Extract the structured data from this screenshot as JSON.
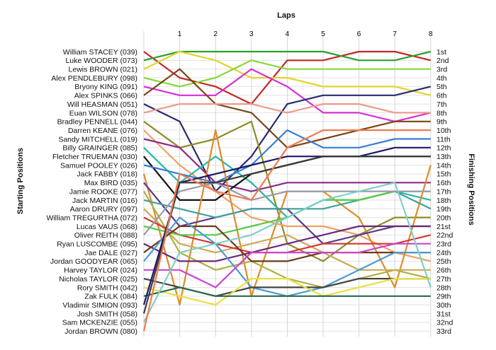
{
  "chart_data": {
    "type": "line",
    "title": "Laps",
    "ylabel_left": "Starting Positions",
    "ylabel_right": "Finishing Positions",
    "laps": [
      "1",
      "2",
      "3",
      "4",
      "5",
      "6",
      "7",
      "8"
    ],
    "finishing_positions": [
      "1st",
      "2nd",
      "3rd",
      "4th",
      "5th",
      "6th",
      "7th",
      "8th",
      "9th",
      "10th",
      "11th",
      "12th",
      "13th",
      "14th",
      "15th",
      "16th",
      "17th",
      "18th",
      "19th",
      "20th",
      "21st",
      "22nd",
      "23rd",
      "24th",
      "25th",
      "26th",
      "27th",
      "28th",
      "29th",
      "30th",
      "31st",
      "32nd",
      "33rd"
    ],
    "ylim": [
      1,
      33
    ],
    "grid": true,
    "series": [
      {
        "name": "William STACEY (039)",
        "color": "#c0282a",
        "values": [
          1,
          4,
          5,
          7,
          2,
          2,
          1,
          1,
          2
        ]
      },
      {
        "name": "Luke WOODER (073)",
        "color": "#2f9e2f",
        "values": [
          2,
          1,
          1,
          1,
          1,
          1,
          2,
          2,
          1
        ]
      },
      {
        "name": "Lewis BROWN (021)",
        "color": "#e3d42a",
        "values": [
          3,
          1,
          2,
          4,
          4,
          5,
          5,
          5,
          6
        ]
      },
      {
        "name": "Alex PENDLEBURY (098)",
        "color": "#88d838",
        "values": [
          4,
          5,
          4,
          2,
          3,
          3,
          3,
          3,
          3
        ]
      },
      {
        "name": "Bryony KING (091)",
        "color": "#d62fd6",
        "values": [
          5,
          6,
          6,
          3,
          5,
          8,
          8,
          9,
          8
        ]
      },
      {
        "name": "Alex SPINKS (066)",
        "color": "#7a4516",
        "values": [
          6,
          3,
          7,
          8,
          12,
          11,
          10,
          9,
          9
        ]
      },
      {
        "name": "Will HEASMAN (051)",
        "color": "#2b2b6e",
        "values": [
          7,
          9,
          17,
          13,
          7,
          6,
          6,
          6,
          5
        ]
      },
      {
        "name": "Euan WILSON (078)",
        "color": "#ee9a88",
        "values": [
          8,
          7,
          7,
          7,
          8,
          7,
          7,
          8,
          8
        ]
      },
      {
        "name": "Bradley PENNELL (044)",
        "color": "#8d8d2a",
        "values": [
          9,
          12,
          11,
          9,
          23,
          25,
          22,
          20,
          20
        ]
      },
      {
        "name": "Darren KEANE (076)",
        "color": "#f0a060",
        "values": [
          10,
          14,
          17,
          20,
          21,
          21,
          22,
          24,
          25
        ]
      },
      {
        "name": "Sandy MITCHELL (019)",
        "color": "#8c2a8a",
        "values": [
          11,
          12,
          16,
          17,
          16,
          16,
          16,
          16,
          16
        ]
      },
      {
        "name": "Billy GRAINGER (085)",
        "color": "#22b8a8",
        "values": [
          12,
          16,
          13,
          16,
          20,
          18,
          18,
          17,
          18
        ]
      },
      {
        "name": "Fletcher TRUEMAN (030)",
        "color": "#111111",
        "values": [
          13,
          18,
          18,
          15,
          14,
          13,
          13,
          13,
          13
        ]
      },
      {
        "name": "Samuel POOLEY (026)",
        "color": "#3a7fd0",
        "values": [
          14,
          15,
          16,
          14,
          10,
          12,
          12,
          11,
          11
        ]
      },
      {
        "name": "Jack FABBY (018)",
        "color": "#e08a2a",
        "values": [
          15,
          30,
          10,
          29,
          17,
          17,
          20,
          28,
          14
        ]
      },
      {
        "name": "Max BIRD (035)",
        "color": "#5c3a8a",
        "values": [
          16,
          21,
          20,
          19,
          19,
          23,
          22,
          21,
          21
        ]
      },
      {
        "name": "Jamie ROOKE (077)",
        "color": "#b0b040",
        "values": [
          17,
          24,
          26,
          25,
          27,
          28,
          27,
          26,
          27
        ]
      },
      {
        "name": "Jack MARTIN (016)",
        "color": "#40a0a0",
        "values": [
          18,
          19,
          20,
          19,
          19,
          19,
          18,
          17,
          19
        ]
      },
      {
        "name": "Aaron DRURY (097)",
        "color": "#ccaa55",
        "values": [
          19,
          23,
          24,
          23,
          22,
          24,
          26,
          26,
          26
        ]
      },
      {
        "name": "William TREGURTHA (072)",
        "color": "#d03a3a",
        "values": [
          20,
          22,
          23,
          24,
          24,
          23,
          23,
          23,
          22
        ]
      },
      {
        "name": "Lucas VAUS (068)",
        "color": "#55cc44",
        "values": [
          21,
          22,
          22,
          21,
          20,
          18,
          18,
          17,
          17
        ]
      },
      {
        "name": "Oliver REITH (088)",
        "color": "#9a9aa8",
        "values": [
          22,
          17,
          16,
          18,
          17,
          17,
          17,
          17,
          17
        ]
      },
      {
        "name": "Ryan LUSCOMBE (095)",
        "color": "#6a2a7a",
        "values": [
          23,
          25,
          25,
          24,
          23,
          22,
          21,
          21,
          21
        ]
      },
      {
        "name": "Jae DALE (027)",
        "color": "#6a3a1a",
        "values": [
          24,
          21,
          21,
          25,
          25,
          24,
          24,
          24,
          24
        ]
      },
      {
        "name": "Jordan GOODYEAR (065)",
        "color": "#4a9ad8",
        "values": [
          25,
          20,
          23,
          28,
          29,
          28,
          26,
          24,
          24
        ]
      },
      {
        "name": "Harvey TAYLOR (024)",
        "color": "#cc44cc",
        "values": [
          26,
          26,
          28,
          24,
          24,
          24,
          24,
          23,
          23
        ]
      },
      {
        "name": "Nicholas TAYLOR (025)",
        "color": "#444444",
        "values": [
          27,
          28,
          29,
          28,
          28,
          28,
          27,
          27,
          27
        ]
      },
      {
        "name": "Rory SMITH (042)",
        "color": "#e8e040",
        "values": [
          28,
          29,
          30,
          27,
          27,
          29,
          28,
          27,
          27
        ]
      },
      {
        "name": "Zak FULK (084)",
        "color": "#2a6a4a",
        "values": [
          29,
          28,
          29,
          29,
          29,
          29,
          29,
          29,
          29
        ]
      },
      {
        "name": "Vladimir SIMION (093)",
        "color": "#1a1a6a",
        "values": [
          30,
          16,
          15,
          14,
          13,
          13,
          13,
          12,
          12
        ]
      },
      {
        "name": "Josh SMITH (058)",
        "color": "#3a3a3a",
        "values": [
          31,
          16,
          16,
          15,
          14,
          13,
          13,
          13,
          13
        ]
      },
      {
        "name": "Sam MCKENZIE (055)",
        "color": "#7fd0c8",
        "values": [
          32,
          24,
          23,
          22,
          20,
          18,
          17,
          16,
          28
        ]
      },
      {
        "name": "Jordan BROWN (080)",
        "color": "#f07a50",
        "values": [
          33,
          15,
          17,
          18,
          12,
          10,
          10,
          10,
          10
        ]
      }
    ]
  }
}
